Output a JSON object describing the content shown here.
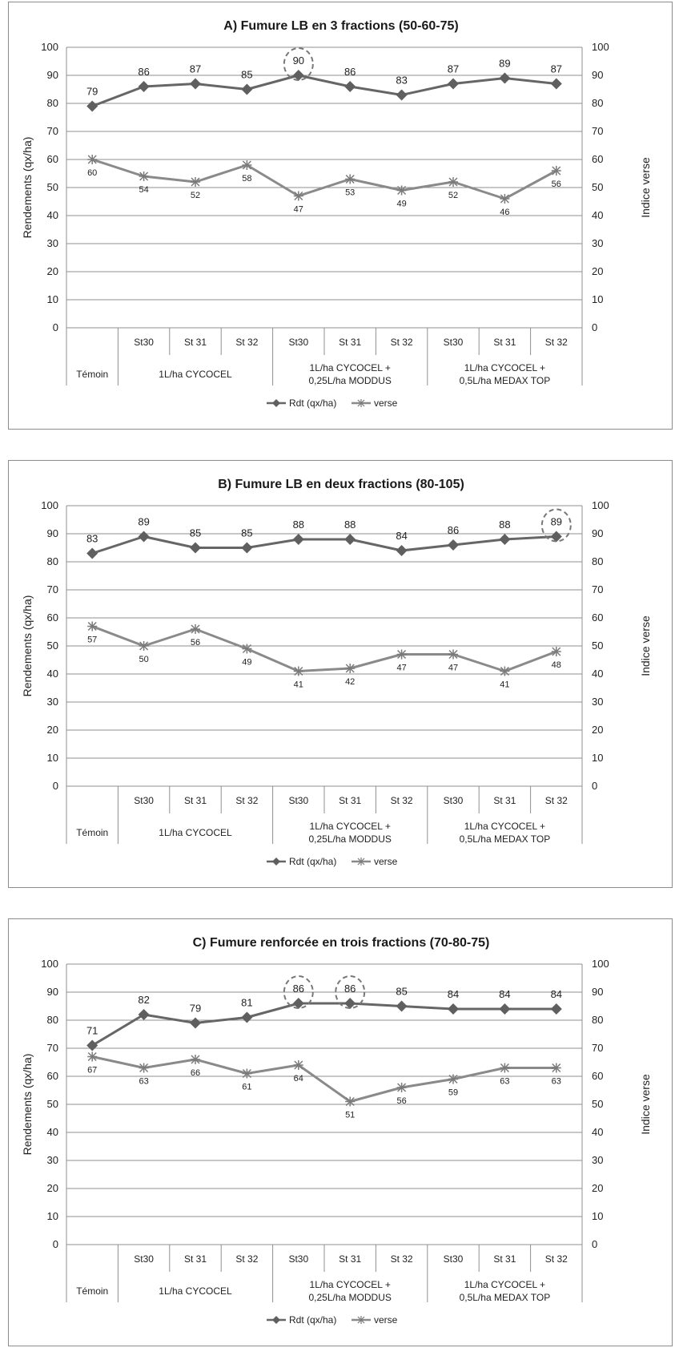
{
  "chart_data": [
    {
      "type": "line",
      "title": "A) Fumure LB en 3 fractions (50-60-75)",
      "ylabel": "Rendements (qx/ha)",
      "y2label": "Indice verse",
      "ylim": [
        0,
        100
      ],
      "y2lim": [
        0,
        100
      ],
      "yticks": [
        "0",
        "10",
        "20",
        "30",
        "40",
        "50",
        "60",
        "70",
        "80",
        "90",
        "100"
      ],
      "categories": [
        "",
        "St30",
        "St 31",
        "St 32",
        "St30",
        "St 31",
        "St 32",
        "St30",
        "St 31",
        "St 32"
      ],
      "groups": [
        {
          "label": "Témoin",
          "span": 1
        },
        {
          "label": "1L/ha CYCOCEL",
          "span": 3
        },
        {
          "label": "1L/ha CYCOCEL +",
          "label2": "0,25L/ha MODDUS",
          "span": 3
        },
        {
          "label": "1L/ha CYCOCEL +",
          "label2": "0,5L/ha MEDAX TOP",
          "span": 3
        }
      ],
      "series": [
        {
          "name": "Rdt (qx/ha)",
          "values": [
            79,
            86,
            87,
            85,
            90,
            86,
            83,
            87,
            89,
            87
          ],
          "labels": [
            "79",
            "86",
            "87",
            "85",
            "90",
            "86",
            "83",
            "87",
            "89",
            "87"
          ],
          "color": "#666666",
          "marker": "diamond"
        },
        {
          "name": "verse",
          "values": [
            60,
            54,
            52,
            58,
            47,
            53,
            49,
            52,
            46,
            56
          ],
          "labels": [
            "60",
            "54",
            "52",
            "58",
            "47",
            "53",
            "49",
            "52",
            "46",
            "56"
          ],
          "color": "#8a8a8a",
          "marker": "star"
        }
      ],
      "highlighted": [
        4
      ],
      "grid": true,
      "legend": "bottom"
    },
    {
      "type": "line",
      "title": "B) Fumure LB en deux fractions (80-105)",
      "ylabel": "Rendements (qx/ha)",
      "y2label": "Indice verse",
      "ylim": [
        0,
        100
      ],
      "y2lim": [
        0,
        100
      ],
      "yticks": [
        "0",
        "10",
        "20",
        "30",
        "40",
        "50",
        "60",
        "70",
        "80",
        "90",
        "100"
      ],
      "categories": [
        "",
        "St30",
        "St 31",
        "St 32",
        "St30",
        "St 31",
        "St 32",
        "St30",
        "St 31",
        "St 32"
      ],
      "groups": [
        {
          "label": "Témoin",
          "span": 1
        },
        {
          "label": "1L/ha CYCOCEL",
          "span": 3
        },
        {
          "label": "1L/ha CYCOCEL +",
          "label2": "0,25L/ha MODDUS",
          "span": 3
        },
        {
          "label": "1L/ha CYCOCEL +",
          "label2": "0,5L/ha MEDAX TOP",
          "span": 3
        }
      ],
      "series": [
        {
          "name": "Rdt (qx/ha)",
          "values": [
            83,
            89,
            85,
            85,
            88,
            88,
            84,
            86,
            88,
            89
          ],
          "labels": [
            "83",
            "89",
            "85",
            "85",
            "88",
            "88",
            "84",
            "86",
            "88",
            "89"
          ],
          "color": "#666666",
          "marker": "diamond"
        },
        {
          "name": "verse",
          "values": [
            57,
            50,
            56,
            49,
            41,
            42,
            47,
            47,
            41,
            48
          ],
          "labels": [
            "57",
            "50",
            "56",
            "49",
            "41",
            "42",
            "47",
            "47",
            "41",
            "48"
          ],
          "color": "#8a8a8a",
          "marker": "star"
        }
      ],
      "highlighted": [
        9
      ],
      "grid": true,
      "legend": "bottom"
    },
    {
      "type": "line",
      "title": "C) Fumure renforcée en trois fractions (70-80-75)",
      "ylabel": "Rendements (qx/ha)",
      "y2label": "Indice verse",
      "ylim": [
        0,
        100
      ],
      "y2lim": [
        0,
        100
      ],
      "yticks": [
        "0",
        "10",
        "20",
        "30",
        "40",
        "50",
        "60",
        "70",
        "80",
        "90",
        "100"
      ],
      "categories": [
        "",
        "St30",
        "St 31",
        "St 32",
        "St30",
        "St 31",
        "St 32",
        "St30",
        "St 31",
        "St 32"
      ],
      "groups": [
        {
          "label": "Témoin",
          "span": 1
        },
        {
          "label": "1L/ha CYCOCEL",
          "span": 3
        },
        {
          "label": "1L/ha CYCOCEL +",
          "label2": "0,25L/ha MODDUS",
          "span": 3
        },
        {
          "label": "1L/ha CYCOCEL +",
          "label2": "0,5L/ha MEDAX TOP",
          "span": 3
        }
      ],
      "series": [
        {
          "name": "Rdt (qx/ha)",
          "values": [
            71,
            82,
            79,
            81,
            86,
            86,
            85,
            84,
            84,
            84
          ],
          "labels": [
            "71",
            "82",
            "79",
            "81",
            "86",
            "86",
            "85",
            "84",
            "84",
            "84"
          ],
          "color": "#666666",
          "marker": "diamond"
        },
        {
          "name": "verse",
          "values": [
            67,
            63,
            66,
            61,
            64,
            51,
            56,
            59,
            63,
            63
          ],
          "labels": [
            "67",
            "63",
            "66",
            "61",
            "64",
            "51",
            "56",
            "59",
            "63",
            "63"
          ],
          "color": "#8a8a8a",
          "marker": "star"
        }
      ],
      "highlighted": [
        4,
        5
      ],
      "grid": true,
      "legend": "bottom"
    }
  ]
}
